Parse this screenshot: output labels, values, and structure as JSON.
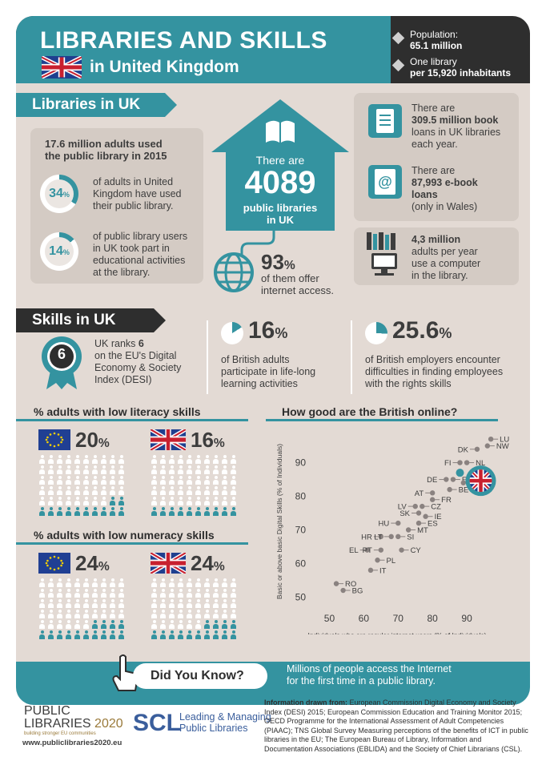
{
  "header": {
    "title": "LIBRARIES AND SKILLS",
    "subtitle": "in United Kingdom",
    "population_label": "Population:",
    "population_value": "65.1 million",
    "library_label": "One library",
    "library_value": "per 15,920 inhabitants"
  },
  "libraries": {
    "banner": "Libraries in UK",
    "adults_line1": "17.6 million adults used",
    "adults_line2": "the public library in 2015",
    "stat1_value": "34",
    "stat1_pct": 34,
    "stat1_text": [
      "of adults in United",
      "Kingdom have used",
      "their public library."
    ],
    "stat2_value": "14",
    "stat2_pct": 14,
    "stat2_text": [
      "of public library users",
      "in UK took part in",
      "educational activities",
      "at the library."
    ],
    "house_pre": "There are",
    "house_count": "4089",
    "house_line1": "public libraries",
    "house_line2": "in UK",
    "internet_value": "93",
    "internet_line1": "of them offer",
    "internet_line2": "internet access.",
    "book_pre": "There are",
    "book_bold1": "309.5 million book",
    "book_line2": "loans in UK libraries",
    "book_line3": "each year.",
    "ebook_pre": "There are",
    "ebook_bold1": "87,993 e-book",
    "ebook_bold2": "loans",
    "ebook_line3": "(only in Wales)",
    "computer_bold": "4,3 million",
    "computer_line2": "adults per year",
    "computer_line3": "use a computer",
    "computer_line4": "in the library."
  },
  "skills": {
    "banner": "Skills in UK",
    "rank_badge": "6",
    "rank_line1_a": "UK ranks ",
    "rank_line1_b": "6",
    "rank_line2": "on the EU's Digital",
    "rank_line3": "Economy & Society",
    "rank_line4": "Index (DESI)",
    "lifelong_value": "16",
    "lifelong_pct": 16,
    "lifelong_text": [
      "of British adults",
      "participate in life-long",
      "learning activities"
    ],
    "employers_value": "25.6",
    "employers_pct": 25.6,
    "employers_text": [
      "of British employers encounter",
      "difficulties in finding employees",
      "with the rights skills"
    ],
    "literacy_title": "% adults with low literacy skills",
    "literacy_eu": "20",
    "literacy_uk": "16",
    "numeracy_title": "% adults with low numeracy skills",
    "numeracy_eu": "24",
    "numeracy_uk": "24"
  },
  "colors": {
    "teal": "#3493a0",
    "dark": "#2e2e2e",
    "panel": "#d4cbc4",
    "bg": "#e3dad4"
  },
  "chart_data": {
    "type": "scatter",
    "title": "How good are the British online?",
    "xlabel": "Individuals who are regular internet users (% of Individuals)",
    "ylabel": "Basic or above basic Digital Skills (% of Individuals)",
    "xlim": [
      45,
      100
    ],
    "ylim": [
      47,
      98
    ],
    "xticks": [
      "50",
      "60",
      "70",
      "80",
      "90"
    ],
    "yticks": [
      "50",
      "60",
      "70",
      "80",
      "90"
    ],
    "points": [
      {
        "label": "LU",
        "x": 97,
        "y": 97
      },
      {
        "label": "NW",
        "x": 96,
        "y": 95
      },
      {
        "label": "DK",
        "x": 93,
        "y": 94
      },
      {
        "label": "FI",
        "x": 88,
        "y": 90
      },
      {
        "label": "NL",
        "x": 90,
        "y": 90
      },
      {
        "label": "DE",
        "x": 84,
        "y": 85
      },
      {
        "label": "EE",
        "x": 86,
        "y": 85
      },
      {
        "label": "SE",
        "x": 89,
        "y": 84
      },
      {
        "label": "BE",
        "x": 85,
        "y": 82
      },
      {
        "label": "AT",
        "x": 80,
        "y": 81
      },
      {
        "label": "FR",
        "x": 80,
        "y": 79
      },
      {
        "label": "LV",
        "x": 75,
        "y": 77
      },
      {
        "label": "CZ",
        "x": 77,
        "y": 77
      },
      {
        "label": "SK",
        "x": 76,
        "y": 75
      },
      {
        "label": "IE",
        "x": 78,
        "y": 74
      },
      {
        "label": "HU",
        "x": 70,
        "y": 72
      },
      {
        "label": "ES",
        "x": 76,
        "y": 72
      },
      {
        "label": "MT",
        "x": 73,
        "y": 70
      },
      {
        "label": "HR",
        "x": 65,
        "y": 68
      },
      {
        "label": "LT",
        "x": 68,
        "y": 68
      },
      {
        "label": "SI",
        "x": 70,
        "y": 68
      },
      {
        "label": "EL",
        "x": 61,
        "y": 64
      },
      {
        "label": "PT",
        "x": 65,
        "y": 64
      },
      {
        "label": "CY",
        "x": 71,
        "y": 64
      },
      {
        "label": "PL",
        "x": 64,
        "y": 61
      },
      {
        "label": "IT",
        "x": 62,
        "y": 58
      },
      {
        "label": "RO",
        "x": 52,
        "y": 54
      },
      {
        "label": "BG",
        "x": 54,
        "y": 52
      }
    ],
    "highlight": {
      "label": "UK",
      "x": 88,
      "y": 87
    }
  },
  "did_you_know": {
    "label": "Did You Know?",
    "line1": "Millions of people access the Internet",
    "line2": "for the first time in a public library."
  },
  "footer": {
    "logo1_line1": "PUBLIC",
    "logo1_line2a": "LIBRARIES",
    "logo1_line2b": "2020",
    "logo1_tag": "building stronger EU communities",
    "website": "www.publiclibraries2020.eu",
    "logo2_abbr": "SCL",
    "logo2_line1": "Leading & Managing",
    "logo2_line2": "Public Libraries",
    "sources_bold": "Information drawn from:",
    "sources": " European Commission Digital Economy and Society Index (DESI) 2015; European Commission Education and Training Monitor 2015; OECD Programme for the International Assessment of Adult Competencies (PIAAC); TNS Global Survey Measuring perceptions of the benefits of ICT in public libraries in the EU; The European Bureau of Library, Information and Documentation Associations (EBLIDA) and the Society of Chief Librarians (CSL)."
  }
}
